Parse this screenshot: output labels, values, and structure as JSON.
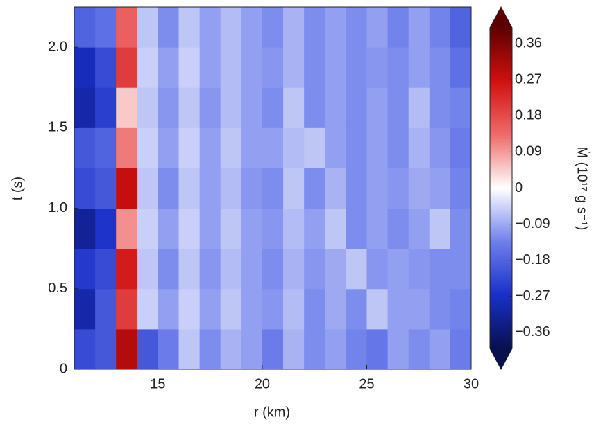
{
  "chart_data": {
    "type": "heatmap",
    "x_label": "r (km)",
    "y_label": "t (s)",
    "colorbar_label": "Ṁ (10¹⁷ g s⁻¹)",
    "x_edges": [
      11,
      12,
      13,
      14,
      15,
      16,
      17,
      18,
      19,
      20,
      21,
      22,
      23,
      24,
      25,
      26,
      27,
      28,
      29,
      30
    ],
    "y_edges": [
      0,
      0.25,
      0.5,
      0.75,
      1,
      1.25,
      1.5,
      1.75,
      2,
      2.25
    ],
    "z": [
      [
        -0.22,
        -0.2,
        0.3,
        -0.2,
        -0.14,
        -0.06,
        -0.12,
        -0.08,
        -0.1,
        -0.14,
        -0.08,
        -0.12,
        -0.1,
        -0.13,
        -0.15,
        -0.1,
        -0.12,
        -0.1,
        -0.14
      ],
      [
        -0.3,
        -0.2,
        0.2,
        -0.05,
        -0.1,
        -0.05,
        -0.1,
        -0.06,
        -0.1,
        -0.11,
        -0.07,
        -0.12,
        -0.09,
        -0.12,
        -0.06,
        -0.1,
        -0.1,
        -0.12,
        -0.13
      ],
      [
        -0.25,
        -0.22,
        0.25,
        -0.06,
        -0.12,
        -0.06,
        -0.11,
        -0.07,
        -0.1,
        -0.12,
        -0.08,
        -0.11,
        -0.09,
        -0.06,
        -0.11,
        -0.1,
        -0.11,
        -0.12,
        -0.12
      ],
      [
        -0.32,
        -0.26,
        0.1,
        -0.05,
        -0.1,
        -0.05,
        -0.1,
        -0.06,
        -0.1,
        -0.11,
        -0.07,
        -0.1,
        -0.06,
        -0.12,
        -0.1,
        -0.12,
        -0.1,
        -0.06,
        -0.12
      ],
      [
        -0.22,
        -0.2,
        0.28,
        -0.06,
        -0.12,
        -0.06,
        -0.1,
        -0.07,
        -0.11,
        -0.12,
        -0.06,
        -0.12,
        -0.08,
        -0.12,
        -0.1,
        -0.11,
        -0.09,
        -0.1,
        -0.13
      ],
      [
        -0.2,
        -0.18,
        0.12,
        -0.05,
        -0.1,
        -0.05,
        -0.1,
        -0.06,
        -0.1,
        -0.1,
        -0.07,
        -0.06,
        -0.1,
        -0.12,
        -0.1,
        -0.12,
        -0.08,
        -0.11,
        -0.14
      ],
      [
        -0.3,
        -0.24,
        0.05,
        -0.06,
        -0.11,
        -0.06,
        -0.11,
        -0.07,
        -0.1,
        -0.12,
        -0.06,
        -0.12,
        -0.1,
        -0.12,
        -0.1,
        -0.12,
        -0.07,
        -0.12,
        -0.13
      ],
      [
        -0.28,
        -0.22,
        0.2,
        -0.05,
        -0.1,
        -0.05,
        -0.1,
        -0.07,
        -0.1,
        -0.11,
        -0.08,
        -0.12,
        -0.1,
        -0.12,
        -0.11,
        -0.12,
        -0.1,
        -0.12,
        -0.16
      ],
      [
        -0.18,
        -0.16,
        0.15,
        -0.06,
        -0.12,
        -0.06,
        -0.1,
        -0.07,
        -0.1,
        -0.12,
        -0.08,
        -0.12,
        -0.1,
        -0.12,
        -0.1,
        -0.13,
        -0.1,
        -0.13,
        -0.18
      ]
    ],
    "xlim": [
      11,
      30
    ],
    "ylim": [
      0,
      2.25
    ],
    "xticks": [
      15,
      20,
      25,
      30
    ],
    "yticks": [
      0,
      0.5,
      {
        "value": 1,
        "label": "1.0"
      },
      1.5,
      {
        "value": 2,
        "label": "2.0"
      }
    ],
    "clim": [
      -0.4,
      0.4
    ],
    "cticks": [
      {
        "value": -0.36,
        "label": "−0.36"
      },
      {
        "value": -0.27,
        "label": "−0.27"
      },
      {
        "value": -0.18,
        "label": "−0.18"
      },
      {
        "value": -0.09,
        "label": "−0.09"
      },
      0,
      0.09,
      0.18,
      0.27,
      0.36
    ],
    "colormap": [
      "#08104e",
      "#1a2fc8",
      "#6f80ec",
      "#ffffff",
      "#ee6b6b",
      "#d01010",
      "#5e0000"
    ]
  }
}
